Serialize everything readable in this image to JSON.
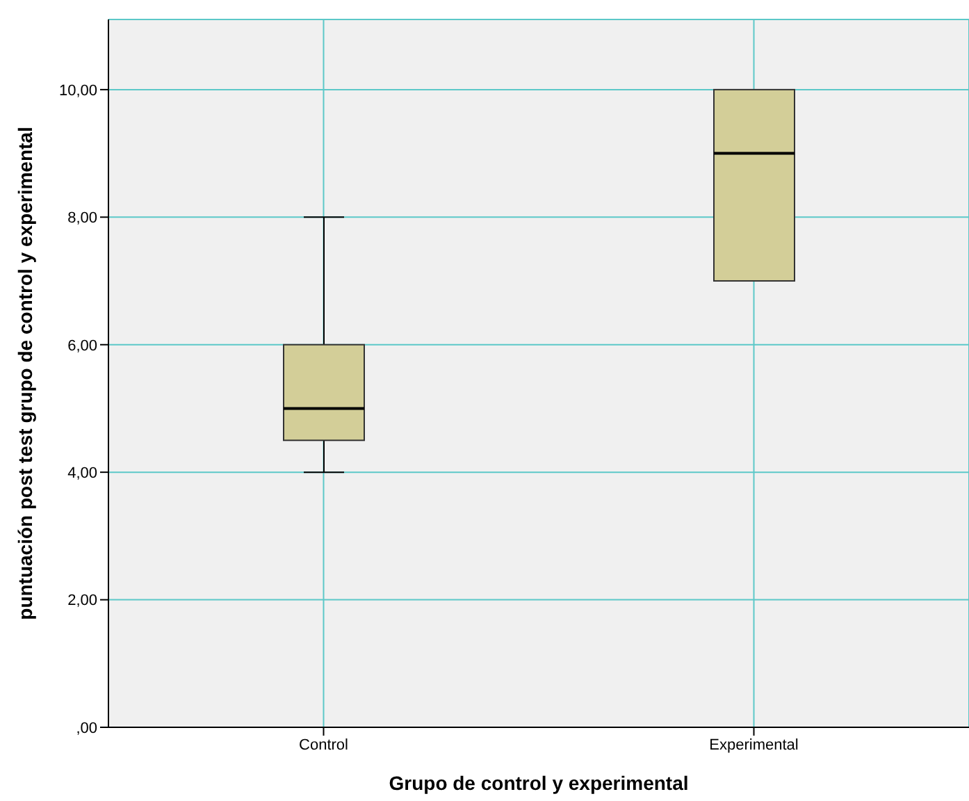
{
  "chart_data": {
    "type": "box",
    "xlabel": "Grupo de control y experimental",
    "ylabel": "puntuación post test grupo de control y experimental",
    "categories": [
      "Control",
      "Experimental"
    ],
    "color": "#d3ce98",
    "boxes": [
      {
        "low": 4,
        "q1": 4.5,
        "median": 5,
        "q3": 6,
        "high": 8
      },
      {
        "low": 7,
        "q1": 7,
        "median": 9,
        "q3": 10,
        "high": 10
      }
    ],
    "ylim": [
      0,
      11.1
    ],
    "yticks": [
      {
        "value": 0,
        "label": ",00"
      },
      {
        "value": 2,
        "label": "2,00"
      },
      {
        "value": 4,
        "label": "4,00"
      },
      {
        "value": 6,
        "label": "6,00"
      },
      {
        "value": 8,
        "label": "8,00"
      },
      {
        "value": 10,
        "label": "10,00"
      }
    ],
    "grid": true
  }
}
